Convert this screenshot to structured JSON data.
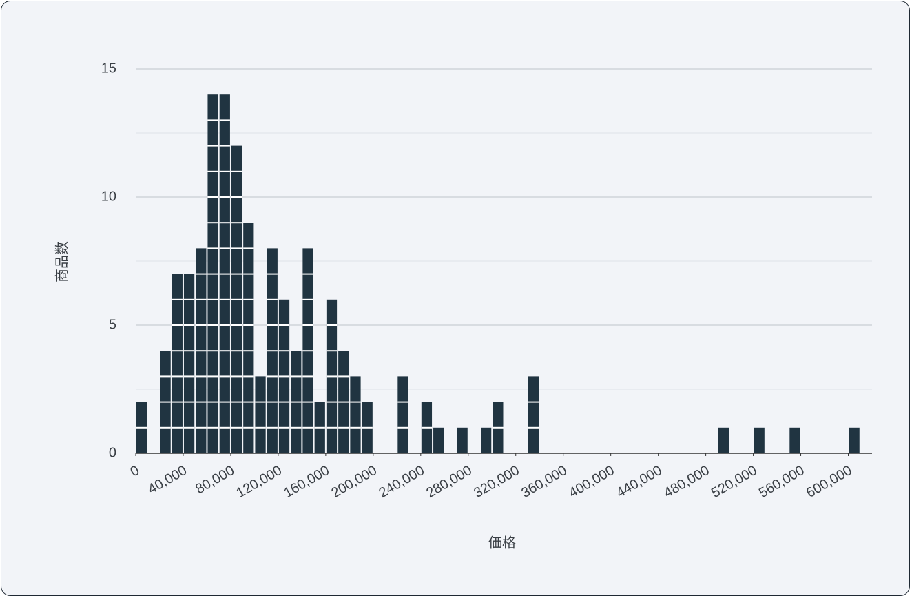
{
  "chart_data": {
    "type": "histogram",
    "x_label": "価格",
    "y_label": "商品数",
    "bins": [
      0,
      10000,
      20000,
      30000,
      40000,
      50000,
      60000,
      70000,
      80000,
      90000,
      100000,
      110000,
      120000,
      130000,
      140000,
      150000,
      160000,
      170000,
      180000,
      190000,
      200000,
      210000,
      220000,
      230000,
      240000,
      250000,
      260000,
      270000,
      280000,
      290000,
      300000,
      310000,
      320000,
      330000,
      340000,
      350000,
      360000,
      370000,
      380000,
      390000,
      400000,
      410000,
      420000,
      430000,
      440000,
      450000,
      460000,
      470000,
      480000,
      490000,
      500000,
      510000,
      520000,
      530000,
      540000,
      550000,
      560000,
      570000,
      580000,
      590000,
      600000,
      610000
    ],
    "values": [
      2,
      0,
      4,
      7,
      7,
      8,
      14,
      14,
      12,
      9,
      3,
      8,
      6,
      4,
      8,
      2,
      6,
      4,
      3,
      2,
      0,
      0,
      3,
      0,
      2,
      1,
      0,
      1,
      0,
      1,
      2,
      0,
      0,
      3,
      0,
      0,
      0,
      0,
      0,
      0,
      0,
      0,
      0,
      0,
      0,
      0,
      0,
      0,
      0,
      1,
      0,
      0,
      1,
      0,
      0,
      1,
      0,
      0,
      0,
      0,
      1
    ],
    "color": "#203441",
    "xlim": [
      0,
      620000
    ],
    "xticks": [
      0,
      {
        "value": 40000,
        "label": "40,000"
      },
      {
        "value": 80000,
        "label": "80,000"
      },
      {
        "value": 120000,
        "label": "120,000"
      },
      {
        "value": 160000,
        "label": "160,000"
      },
      {
        "value": 200000,
        "label": "200,000"
      },
      {
        "value": 240000,
        "label": "240,000"
      },
      {
        "value": 280000,
        "label": "280,000"
      },
      {
        "value": 320000,
        "label": "320,000"
      },
      {
        "value": 360000,
        "label": "360,000"
      },
      {
        "value": 400000,
        "label": "400,000"
      },
      {
        "value": 440000,
        "label": "440,000"
      },
      {
        "value": 480000,
        "label": "480,000"
      },
      {
        "value": 520000,
        "label": "520,000"
      },
      {
        "value": 560000,
        "label": "560,000"
      },
      {
        "value": 600000,
        "label": "600,000"
      }
    ],
    "ylim": [
      0,
      15
    ],
    "yticks": [
      0,
      5,
      10,
      15
    ],
    "minor_yticks": [
      2.5,
      7.5,
      12.5
    ],
    "grid": true
  }
}
